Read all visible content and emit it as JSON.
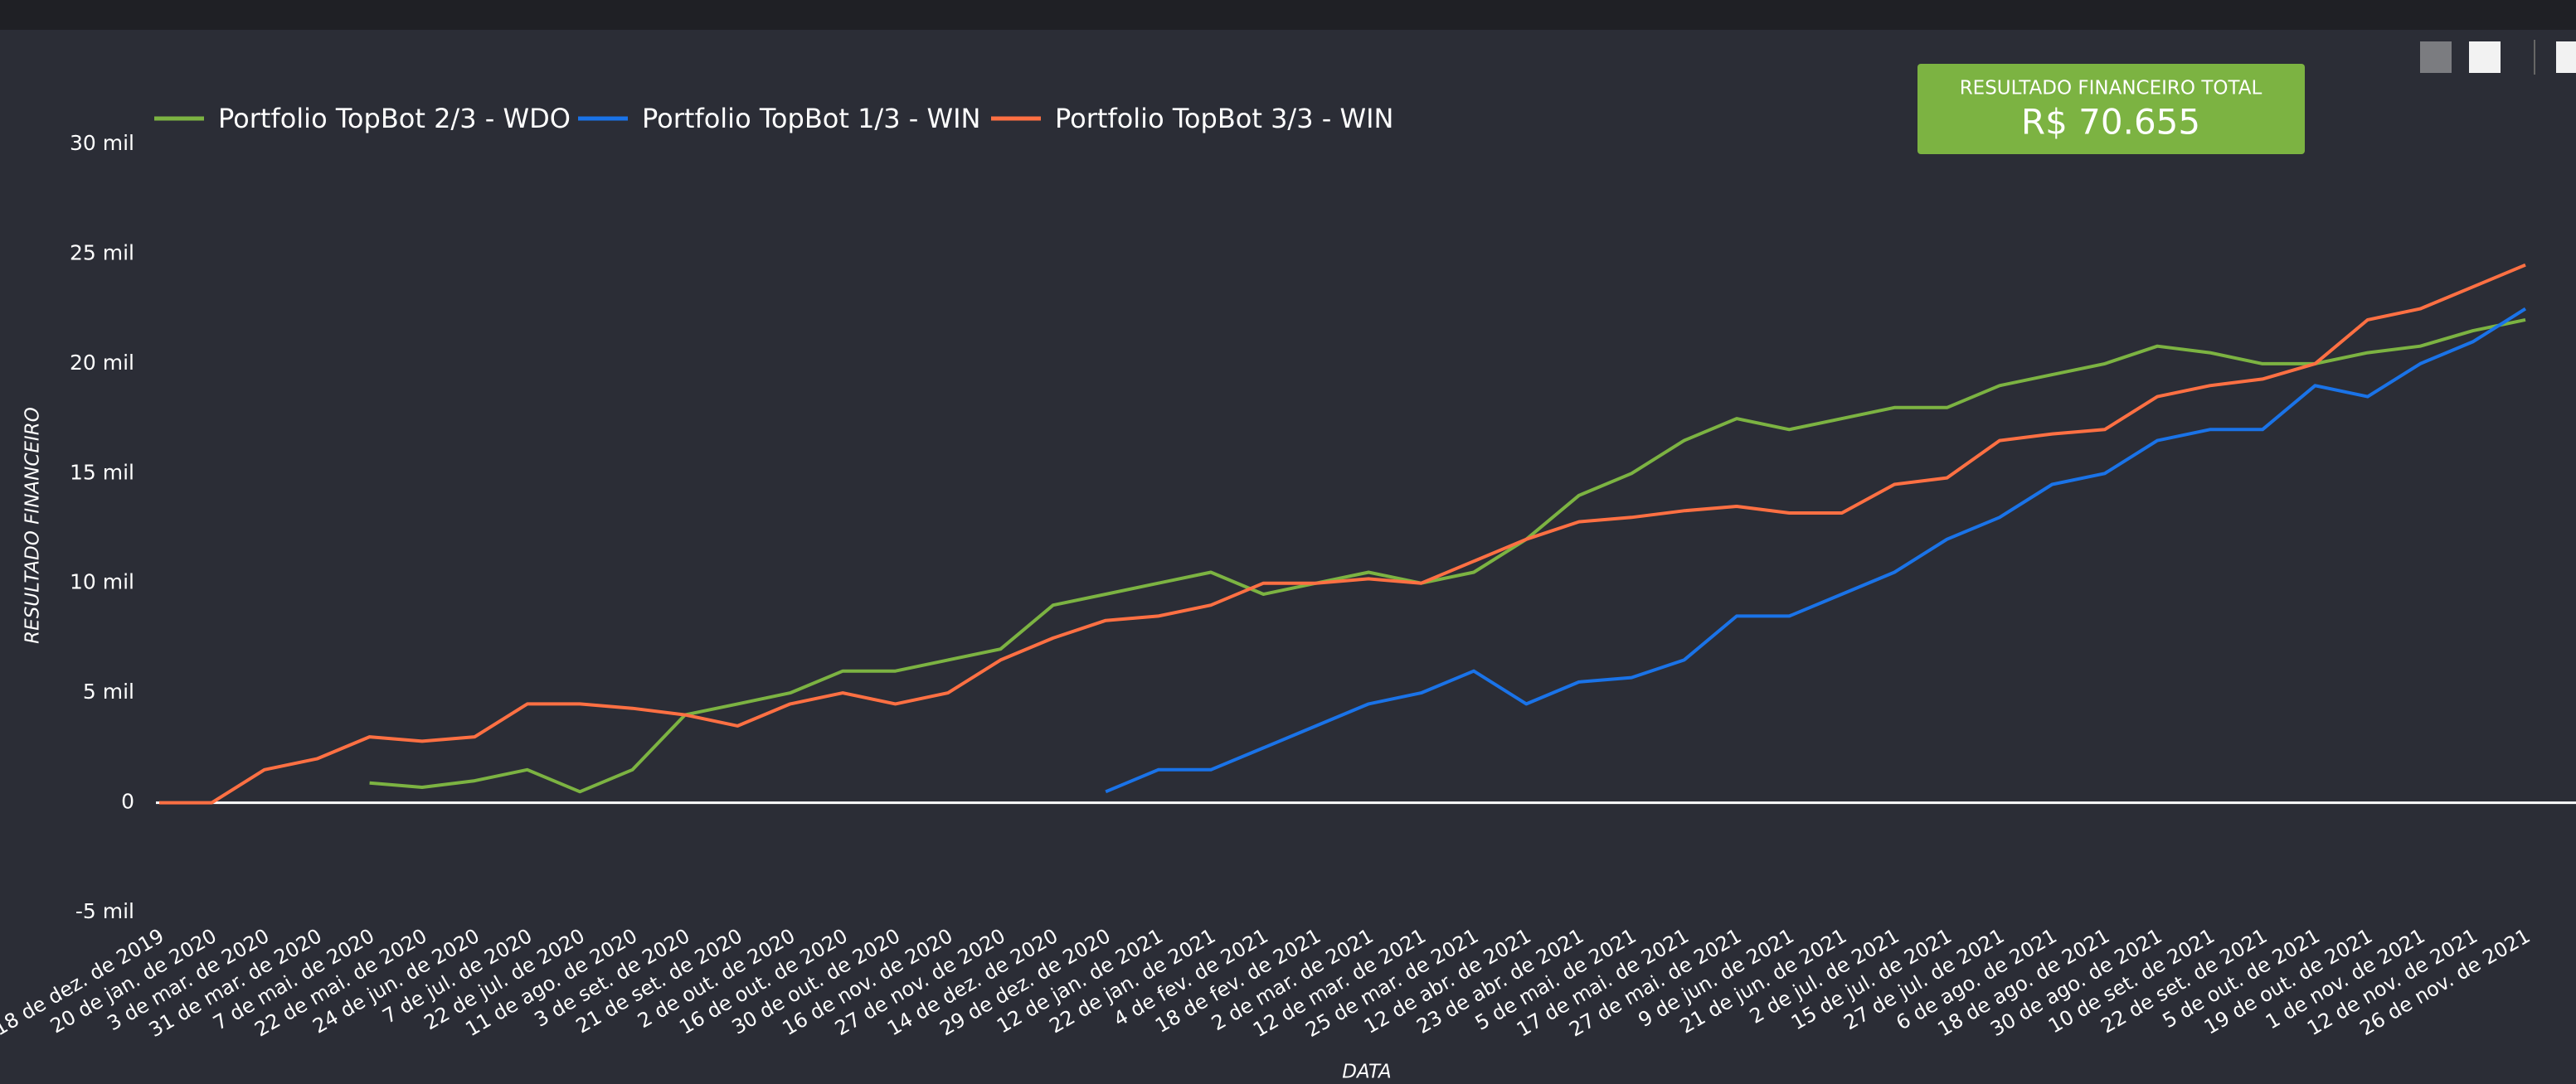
{
  "chart_data": {
    "type": "line",
    "xlabel": "DATA",
    "ylabel": "RESULTADO FINANCEIRO",
    "categories": [
      "18 de dez. de 2019",
      "20 de jan. de 2020",
      "3 de mar. de 2020",
      "31 de mar. de 2020",
      "7 de mai. de 2020",
      "22 de mai. de 2020",
      "24 de jun. de 2020",
      "7 de jul. de 2020",
      "22 de jul. de 2020",
      "11 de ago. de 2020",
      "3 de set. de 2020",
      "21 de set. de 2020",
      "2 de out. de 2020",
      "16 de out. de 2020",
      "30 de out. de 2020",
      "16 de nov. de 2020",
      "27 de nov. de 2020",
      "14 de dez. de 2020",
      "29 de dez. de 2020",
      "12 de jan. de 2021",
      "22 de jan. de 2021",
      "4 de fev. de 2021",
      "18 de fev. de 2021",
      "2 de mar. de 2021",
      "12 de mar. de 2021",
      "25 de mar. de 2021",
      "12 de abr. de 2021",
      "23 de abr. de 2021",
      "5 de mai. de 2021",
      "17 de mai. de 2021",
      "27 de mai. de 2021",
      "9 de jun. de 2021",
      "21 de jun. de 2021",
      "2 de jul. de 2021",
      "15 de jul. de 2021",
      "27 de jul. de 2021",
      "6 de ago. de 2021",
      "18 de ago. de 2021",
      "30 de ago. de 2021",
      "10 de set. de 2021",
      "22 de set. de 2021",
      "5 de out. de 2021",
      "19 de out. de 2021",
      "1 de nov. de 2021",
      "12 de nov. de 2021",
      "26 de nov. de 2021"
    ],
    "series": [
      {
        "name": "Portfolio TopBot 2/3 - WDO",
        "color": "#7cb342",
        "values": [
          null,
          null,
          null,
          null,
          900,
          700,
          1000,
          1500,
          500,
          1500,
          4000,
          4500,
          5000,
          6000,
          6000,
          6500,
          7000,
          9000,
          9500,
          10000,
          10500,
          9500,
          10000,
          10500,
          10000,
          10500,
          12000,
          14000,
          15000,
          16500,
          17500,
          17000,
          17500,
          18000,
          18000,
          19000,
          19500,
          20000,
          20800,
          20500,
          20000,
          20000,
          20500,
          20800,
          21500,
          22000
        ]
      },
      {
        "name": "Portfolio TopBot 1/3 - WIN",
        "color": "#1a73e8",
        "values": [
          null,
          null,
          null,
          null,
          null,
          null,
          null,
          null,
          null,
          null,
          null,
          null,
          null,
          null,
          null,
          null,
          null,
          null,
          500,
          1500,
          1500,
          2500,
          3500,
          4500,
          5000,
          6000,
          4500,
          5500,
          5700,
          6500,
          8500,
          8500,
          9500,
          10500,
          12000,
          13000,
          14500,
          15000,
          16500,
          17000,
          17000,
          19000,
          18500,
          20000,
          21000,
          22500
        ]
      },
      {
        "name": "Portfolio TopBot 3/3 - WIN",
        "color": "#ff7043",
        "values": [
          0,
          0,
          1500,
          2000,
          3000,
          2800,
          3000,
          4500,
          4500,
          4300,
          4000,
          3500,
          4500,
          5000,
          4500,
          5000,
          6500,
          7500,
          8300,
          8500,
          9000,
          10000,
          10000,
          10200,
          10000,
          11000,
          12000,
          12800,
          13000,
          13300,
          13500,
          13200,
          13200,
          14500,
          14800,
          16500,
          16800,
          17000,
          18500,
          19000,
          19300,
          20000,
          22000,
          22500,
          23500,
          24500
        ]
      }
    ],
    "ylim": [
      -5000,
      30000
    ],
    "yticks": [
      {
        "value": -5000,
        "label": "-5 mil"
      },
      0,
      {
        "value": 5000,
        "label": "5 mil"
      },
      {
        "value": 10000,
        "label": "10 mil"
      },
      {
        "value": 15000,
        "label": "15 mil"
      },
      {
        "value": 20000,
        "label": "20 mil"
      },
      {
        "value": 25000,
        "label": "25 mil"
      },
      {
        "value": 30000,
        "label": "30 mil"
      }
    ],
    "zero_line": true
  },
  "kpi": {
    "label": "RESULTADO FINANCEIRO TOTAL",
    "value": "R$ 70.655"
  }
}
